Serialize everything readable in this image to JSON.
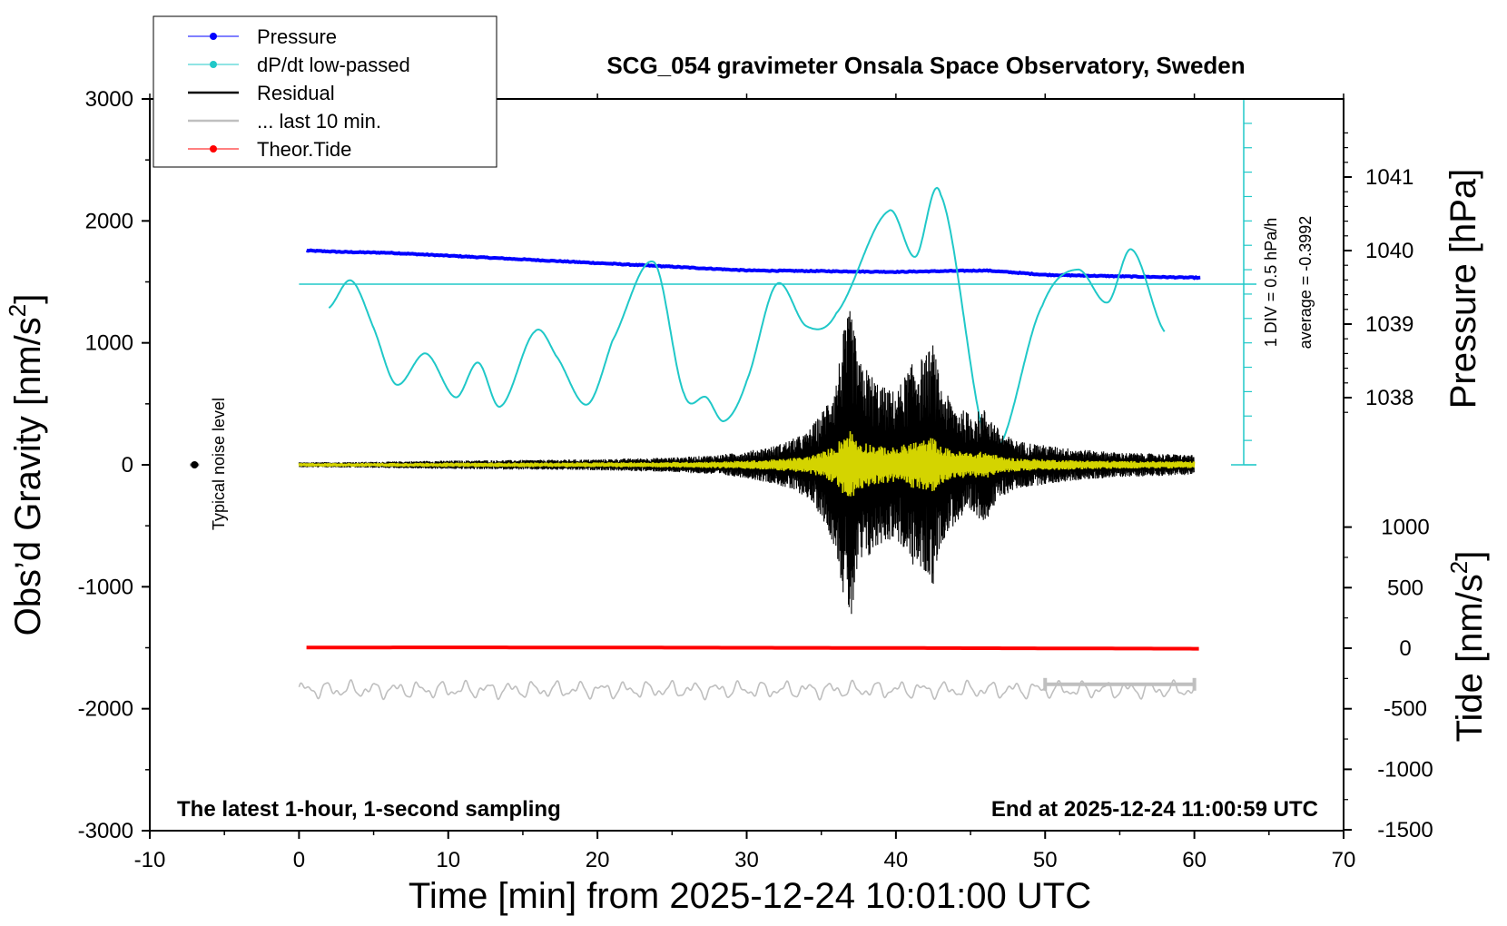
{
  "chart_data": {
    "type": "line",
    "title": "SCG_054 gravimeter Onsala Space Observatory, Sweden",
    "xlabel": "Time [min] from 2025-12-24 10:01:00 UTC",
    "ylabel_left": "Obs’d Gravity [nm/s",
    "ylabel_right_top": "Pressure [hPa]",
    "ylabel_right_bottom": "Tide [nm/s",
    "superscript": "2",
    "xlim": [
      -10,
      70
    ],
    "ylim": [
      -3000,
      3000
    ],
    "x_ticks": [
      -10,
      0,
      10,
      20,
      30,
      40,
      50,
      60,
      70
    ],
    "y_ticks": [
      3000,
      2000,
      1000,
      0,
      -1000,
      -2000,
      -3000
    ],
    "pressure_ticks": [
      1041,
      1040,
      1039,
      1038
    ],
    "tide_ticks": [
      1000,
      500,
      0,
      -500,
      -1000,
      -1500
    ],
    "legend": [
      {
        "label": "Pressure",
        "color": "#0000ff",
        "marker": true
      },
      {
        "label": "dP/dt low-passed",
        "color": "#20c8c8",
        "marker": true
      },
      {
        "label": "Residual",
        "color": "#000000",
        "marker": false
      },
      {
        "label": "... last 10 min.",
        "color": "#bfbfbf",
        "marker": false
      },
      {
        "label": "Theor.Tide",
        "color": "#ff0000",
        "marker": true
      }
    ],
    "annotations": {
      "noise": "Typical noise level",
      "dpdt_scale": "1 DIV = 0.5 hPa/h",
      "dpdt_average": "average = -0.3992",
      "bottom_left": "The latest 1-hour, 1-second sampling",
      "bottom_right": "End at 2025-12-24 11:00:59 UTC"
    },
    "series": [
      {
        "name": "Pressure",
        "color": "#0000ff",
        "unit": "hPa",
        "x": [
          0.5,
          3,
          6,
          10,
          15,
          20,
          25,
          30,
          35,
          40,
          43,
          46,
          50,
          55,
          60.5
        ],
        "values": [
          1040.0,
          1039.98,
          1039.97,
          1039.93,
          1039.88,
          1039.83,
          1039.78,
          1039.73,
          1039.72,
          1039.71,
          1039.72,
          1039.73,
          1039.67,
          1039.65,
          1039.63
        ]
      },
      {
        "name": "dP/dt low-passed",
        "color": "#20c8c8",
        "unit": "hPa/h",
        "x": [
          2,
          3.5,
          5,
          6.5,
          8.5,
          10.5,
          12,
          13.5,
          15.8,
          17.2,
          19.3,
          21,
          23.8,
          25.8,
          27.3,
          28.5,
          30,
          32,
          34,
          36,
          39.5,
          41.3,
          43,
          46.3,
          49.8,
          52.2,
          54.2,
          55.8,
          58
        ],
        "values": [
          -0.13,
          0.02,
          -0.24,
          -0.55,
          -0.38,
          -0.62,
          -0.43,
          -0.67,
          -0.26,
          -0.39,
          -0.66,
          -0.31,
          0.12,
          -0.6,
          -0.62,
          -0.75,
          -0.53,
          0.0,
          -0.23,
          -0.16,
          0.4,
          0.15,
          0.49,
          -0.91,
          -0.12,
          0.08,
          -0.1,
          0.19,
          -0.26
        ]
      },
      {
        "name": "Residual",
        "color": "#000000",
        "unit": "nm/s2",
        "x": [
          0,
          5,
          10,
          15,
          20,
          25,
          28,
          30,
          32,
          34,
          35,
          36,
          36.5,
          37,
          37.5,
          38,
          39,
          40,
          41,
          42,
          42.5,
          43,
          44,
          45,
          46,
          47,
          48,
          50,
          52,
          55,
          58,
          60
        ],
        "values": [
          20,
          25,
          35,
          40,
          45,
          60,
          80,
          110,
          160,
          260,
          420,
          700,
          1100,
          1300,
          850,
          800,
          650,
          600,
          820,
          900,
          1000,
          650,
          480,
          420,
          460,
          270,
          200,
          160,
          130,
          100,
          90,
          80
        ]
      },
      {
        "name": "... last 10 min.",
        "color": "#bfbfbf",
        "unit": "nm/s2",
        "x_start": 50,
        "x_end": 60,
        "values": [
          -1800,
          -1800
        ]
      },
      {
        "name": "Theor.Tide",
        "color": "#ff0000",
        "unit": "nm/s2",
        "x": [
          0.5,
          10,
          20,
          30,
          40,
          50,
          60.5
        ],
        "values": [
          -1498,
          -1497,
          -1498,
          -1500,
          -1502,
          -1505,
          -1508
        ]
      }
    ]
  },
  "colors": {
    "pressure": "#0000ff",
    "dpdt": "#20c8c8",
    "residual": "#000000",
    "filtered": "#d4d400",
    "last10": "#bfbfbf",
    "tide": "#ff0000"
  }
}
